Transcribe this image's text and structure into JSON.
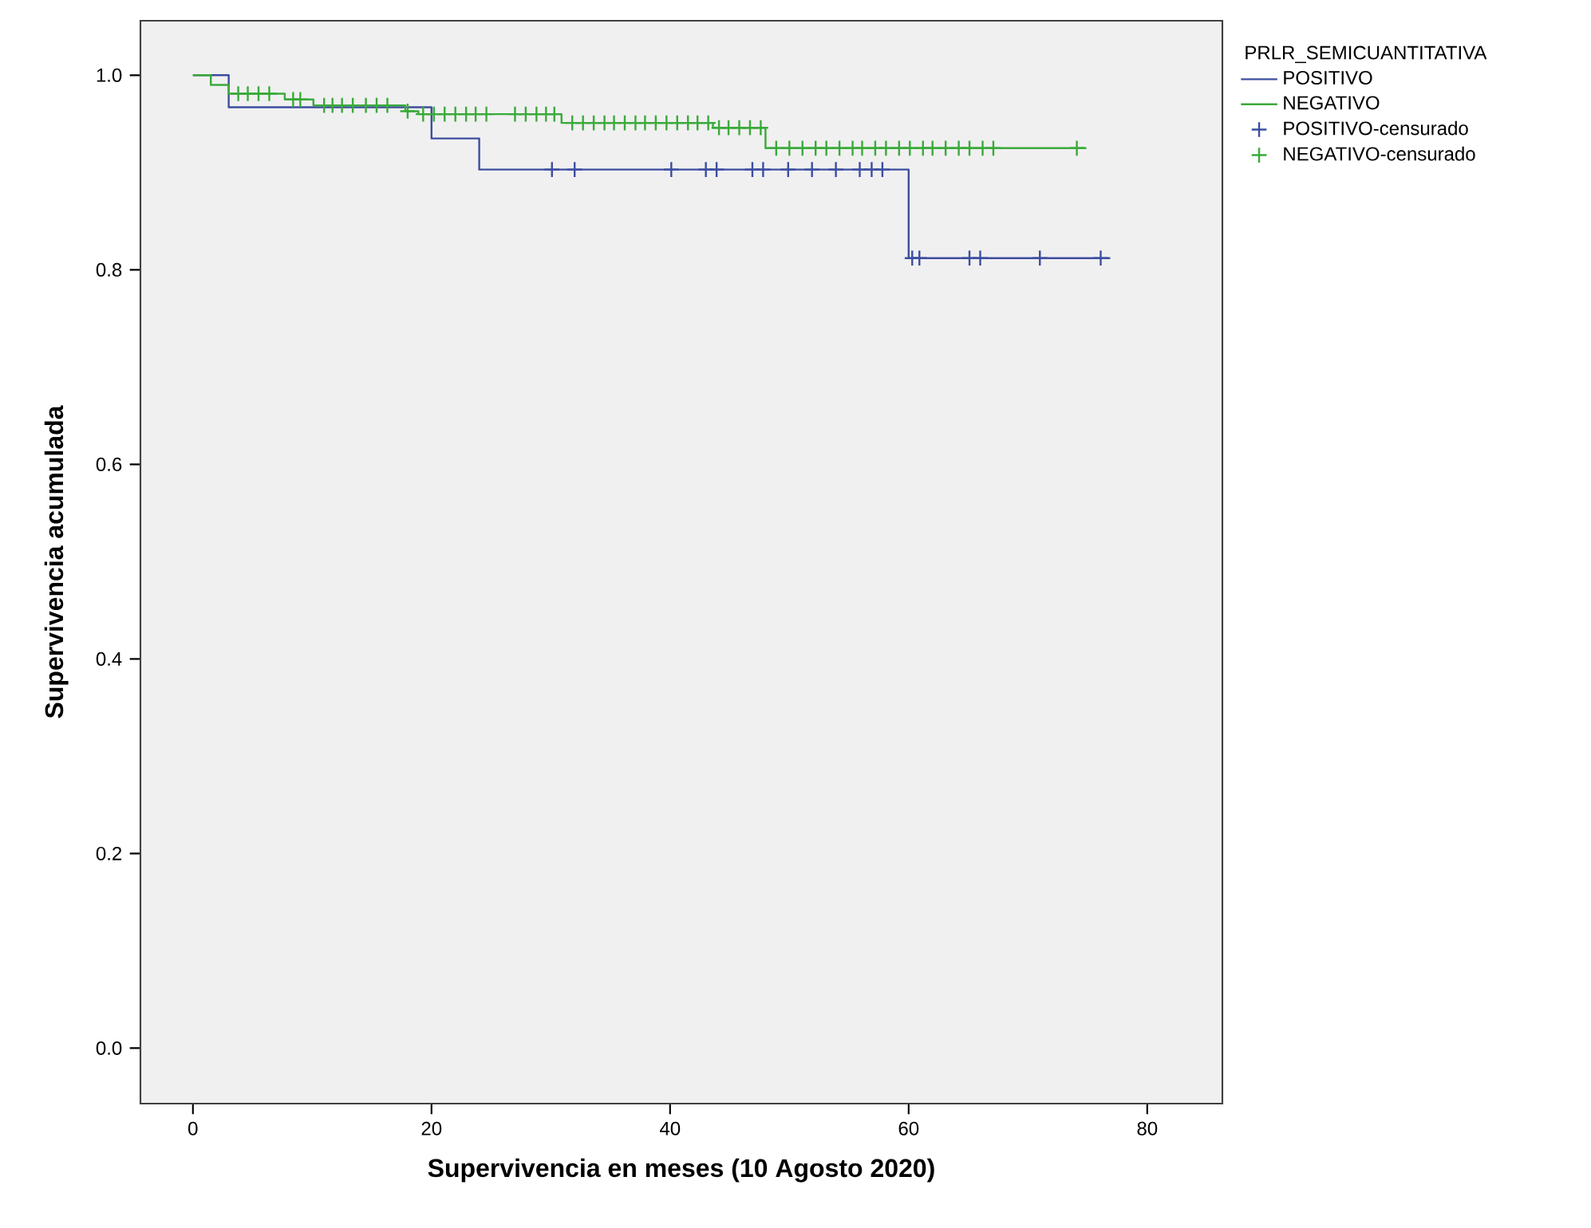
{
  "chart_data": {
    "type": "step",
    "xlabel": "Supervivencia en meses (10 Agosto 2020)",
    "ylabel": "Supervivencia acumulada",
    "legend_title": "PRLR_SEMICUANTITATIVA",
    "xlim": [
      -4.4,
      86.3
    ],
    "ylim": [
      -0.057,
      1.056
    ],
    "xticks": [
      0,
      20,
      40,
      60,
      80
    ],
    "yticks": [
      {
        "value": 0,
        "label": "0.0"
      },
      {
        "value": 0.2,
        "label": "0.2"
      },
      {
        "value": 0.4,
        "label": "0.4"
      },
      {
        "value": 0.6,
        "label": "0.6"
      },
      {
        "value": 0.8,
        "label": "0.8"
      },
      {
        "value": 1,
        "label": "1.0"
      }
    ],
    "grid": false,
    "legend": "top right",
    "line_style": "solid",
    "series": [
      {
        "name": "POSITIVO",
        "color": "#3c4ea0",
        "x": [
          0,
          3,
          20,
          24,
          60,
          76.9
        ],
        "values": [
          1,
          0.967,
          0.935,
          0.903,
          0.812,
          0.812
        ]
      },
      {
        "name": "NEGATIVO",
        "color": "#3aaa3a",
        "x": [
          0,
          1.5,
          3,
          7.7,
          10.1,
          17.8,
          18.9,
          30.9,
          43.6,
          48,
          74.9
        ],
        "values": [
          1,
          0.99,
          0.981,
          0.975,
          0.969,
          0.963,
          0.96,
          0.951,
          0.946,
          0.925,
          0.925
        ]
      },
      {
        "name": "POSITIVO-censurado",
        "type": "scatter",
        "marker": "cross",
        "color": "#3c4ea0",
        "x": [
          30.1,
          32.0,
          40.1,
          43.0,
          43.9,
          46.9,
          47.8,
          49.9,
          51.9,
          53.9,
          55.9,
          56.9,
          57.8,
          60.3,
          60.9,
          65.1,
          66.0,
          71.0,
          76.1
        ],
        "values": [
          0.903,
          0.903,
          0.903,
          0.903,
          0.903,
          0.903,
          0.903,
          0.903,
          0.903,
          0.903,
          0.903,
          0.903,
          0.903,
          0.812,
          0.812,
          0.812,
          0.812,
          0.812,
          0.812
        ]
      },
      {
        "name": "NEGATIVO-censurado",
        "type": "scatter",
        "marker": "cross",
        "color": "#3aaa3a",
        "x": [
          3.8,
          4.6,
          5.5,
          6.4,
          8.4,
          9.0,
          11.0,
          11.7,
          12.5,
          13.4,
          14.5,
          15.4,
          16.3,
          18.0,
          19.3,
          20.2,
          21.1,
          22.0,
          22.9,
          23.7,
          24.6,
          27.0,
          27.9,
          28.8,
          29.6,
          30.3,
          31.8,
          32.7,
          33.6,
          34.5,
          35.3,
          36.2,
          37.1,
          37.9,
          38.8,
          39.7,
          40.6,
          41.5,
          42.3,
          43.2,
          44.1,
          44.9,
          45.8,
          46.7,
          47.6,
          48.9,
          50.0,
          51.1,
          52.2,
          53.1,
          54.2,
          55.3,
          56.1,
          57.2,
          58.1,
          59.2,
          60.1,
          61.2,
          62.0,
          63.1,
          64.2,
          65.1,
          66.2,
          67.1,
          74.1
        ],
        "values": [
          0.981,
          0.981,
          0.981,
          0.981,
          0.975,
          0.975,
          0.969,
          0.969,
          0.969,
          0.969,
          0.969,
          0.969,
          0.969,
          0.963,
          0.96,
          0.96,
          0.96,
          0.96,
          0.96,
          0.96,
          0.96,
          0.96,
          0.96,
          0.96,
          0.96,
          0.96,
          0.951,
          0.951,
          0.951,
          0.951,
          0.951,
          0.951,
          0.951,
          0.951,
          0.951,
          0.951,
          0.951,
          0.951,
          0.951,
          0.951,
          0.946,
          0.946,
          0.946,
          0.946,
          0.946,
          0.925,
          0.925,
          0.925,
          0.925,
          0.925,
          0.925,
          0.925,
          0.925,
          0.925,
          0.925,
          0.925,
          0.925,
          0.925,
          0.925,
          0.925,
          0.925,
          0.925,
          0.925,
          0.925,
          0.925
        ]
      }
    ]
  }
}
